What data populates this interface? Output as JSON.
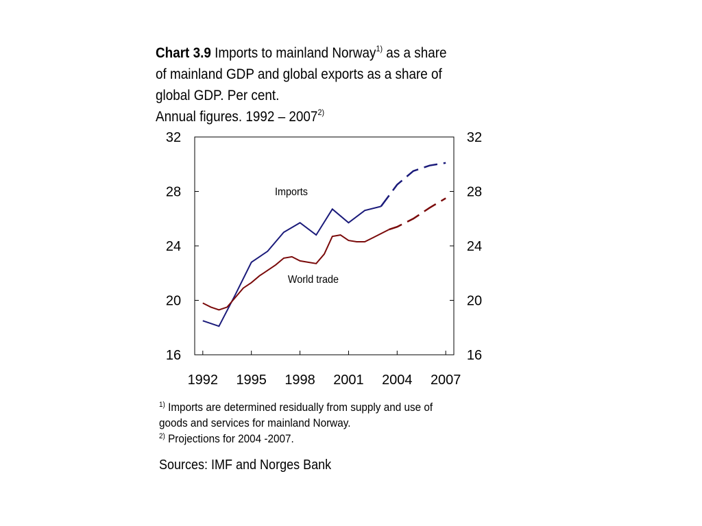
{
  "title": {
    "label": "Chart 3.9",
    "line1": "Imports to mainland Norway",
    "sup1": "1)",
    "line1_rest": "as a share",
    "line2": "of mainland GDP and global exports as a share of",
    "line3": "global GDP. Per cent.",
    "line4": "Annual figures. 1992 – 2007",
    "sup2": "2)"
  },
  "footnotes": {
    "note1_sup": "1)",
    "note1": "Imports are determined residually from supply and use of goods and services for mainland Norway.",
    "note2_sup": "2)",
    "note2": "Projections for 2004 -2007."
  },
  "sources": "Sources: IMF and Norges Bank",
  "chart_data": {
    "type": "line",
    "y_ticks": [
      "16",
      "20",
      "24",
      "28",
      "32"
    ],
    "x_ticks": [
      "1992",
      "1995",
      "1998",
      "2001",
      "2004",
      "2007"
    ],
    "ylim": [
      16,
      32
    ],
    "xlim": [
      1991.5,
      2007.5
    ],
    "grid": false,
    "projection_start": 2004,
    "series": [
      {
        "name": "Imports",
        "color": "#1a1a7a",
        "x": [
          1992,
          1993,
          1994,
          1995,
          1996,
          1997,
          1998,
          1999,
          2000,
          2001,
          2002,
          2003,
          2004,
          2005,
          2006,
          2007
        ],
        "y": [
          18.5,
          18.1,
          20.4,
          22.8,
          23.6,
          25.0,
          25.7,
          24.8,
          26.7,
          25.7,
          26.6,
          26.9,
          28.5,
          29.5,
          29.9,
          30.1
        ]
      },
      {
        "name": "World trade",
        "color": "#7a0a0a",
        "x": [
          1992,
          1992.5,
          1993,
          1993.5,
          1994,
          1994.5,
          1995,
          1995.5,
          1996,
          1996.5,
          1997,
          1997.5,
          1998,
          1998.5,
          1999,
          1999.5,
          2000,
          2000.5,
          2001,
          2001.5,
          2002,
          2002.5,
          2003,
          2003.5,
          2004,
          2005,
          2006,
          2007
        ],
        "y": [
          19.8,
          19.5,
          19.3,
          19.5,
          20.2,
          20.9,
          21.3,
          21.8,
          22.2,
          22.6,
          23.1,
          23.2,
          22.9,
          22.8,
          22.7,
          23.4,
          24.7,
          24.8,
          24.4,
          24.3,
          24.3,
          24.6,
          24.9,
          25.2,
          25.4,
          26.0,
          26.8,
          27.5
        ]
      }
    ]
  }
}
